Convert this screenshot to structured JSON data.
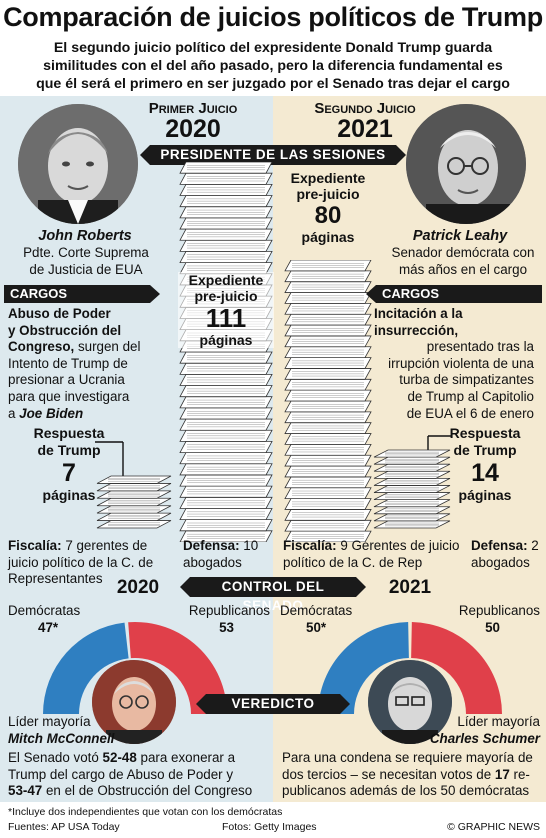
{
  "header": {
    "title": "Comparación de juicios políticos de Trump",
    "subtitle_lines": [
      "El segundo juicio político del expresidente Donald Trump guarda",
      "similitudes con el del año pasado, pero la diferencia fundamental es",
      "que él será el primero en ser juzgado por el Senado tras dejar el cargo"
    ]
  },
  "first_trial": {
    "label": "Primer Juicio",
    "year": "2020",
    "presider_name": "John Roberts",
    "presider_role": [
      "Pdte. Corte Suprema",
      "de Justicia de EUA"
    ],
    "charges_lines_bold": [
      "Abuso de Poder",
      "y Obstrucción del",
      "Congreso,"
    ],
    "charges_rest": [
      " surgen del",
      "Intento de Trump de",
      "presionar a Ucrania",
      "para que investigara",
      "a "
    ],
    "charges_target": "Joe Biden",
    "dossier": {
      "label": [
        "Expediente",
        "pre-juicio"
      ],
      "number": "111",
      "unit": "páginas"
    },
    "response": {
      "label": [
        "Respuesta",
        "de Trump"
      ],
      "number": "7",
      "unit": "páginas"
    },
    "prosecution_label": "Fiscalía:",
    "prosecution_text": [
      " 7 gerentes de",
      "juicio político de la C. de",
      "Representantes"
    ],
    "defense_label": "Defensa:",
    "defense_text": [
      " 10",
      "abogados"
    ],
    "senate_year": "2020",
    "democrats_label": "Demócratas",
    "democrats_value": "47*",
    "republicans_label": "Republicanos",
    "republicans_value": "53",
    "leader_label": "Líder mayoría",
    "leader_name": "Mitch McConnell",
    "verdict_parts": [
      "El Senado votó ",
      "52-48",
      " para exonerar a",
      "Trump del cargo de Abuso de Poder y",
      "53-47",
      " en el de Obstrucción del Congreso"
    ]
  },
  "second_trial": {
    "label": "Segundo Juicio",
    "year": "2021",
    "presider_name": "Patrick Leahy",
    "presider_role": [
      "Senador demócrata con",
      "más años en el cargo"
    ],
    "charges_lines_bold": [
      "Incitación a la",
      "insurrección,"
    ],
    "charges_rest": [
      "presentado tras la",
      "irrupción violenta de una",
      "turba de simpatizantes",
      "de Trump al Capitolio",
      "de EUA el 6 de enero"
    ],
    "dossier": {
      "label": [
        "Expediente",
        "pre-juicio"
      ],
      "number": "80",
      "unit": "páginas"
    },
    "response": {
      "label": [
        "Respuesta",
        "de Trump"
      ],
      "number": "14",
      "unit": "páginas"
    },
    "prosecution_label": "Fiscalía:",
    "prosecution_text": [
      " 9 Gerentes de juicio",
      "político de la C. de Rep"
    ],
    "defense_label": "Defensa:",
    "defense_text": [
      " 2",
      "abogados"
    ],
    "senate_year": "2021",
    "democrats_label": "Demócratas",
    "democrats_value": "50*",
    "republicans_label": "Republicanos",
    "republicans_value": "50",
    "leader_label": "Líder mayoría",
    "leader_name": "Charles Schumer",
    "verdict_parts": [
      "Para una condena se requiere mayoría de",
      "dos tercios – se necesitan votos de ",
      "17",
      " re-",
      "publicanos además de los 50 demócratas"
    ]
  },
  "banners": {
    "presiding": "PRESIDENTE DE LAS SESIONES",
    "charges": "CARGOS",
    "senate_control": "CONTROL DEL SENADO",
    "verdict": "VEREDICTO"
  },
  "footer": {
    "note": "*Incluye dos independientes que votan con los demócratas",
    "sources": "Fuentes: AP USA Today",
    "photos": "Fotos: Getty Images",
    "credit": "© GRAPHIC NEWS"
  },
  "colors": {
    "democrat": "#2f7fc1",
    "republican": "#e0404a",
    "left_panel": "#dde9ee",
    "right_panel": "#f4ead2"
  }
}
